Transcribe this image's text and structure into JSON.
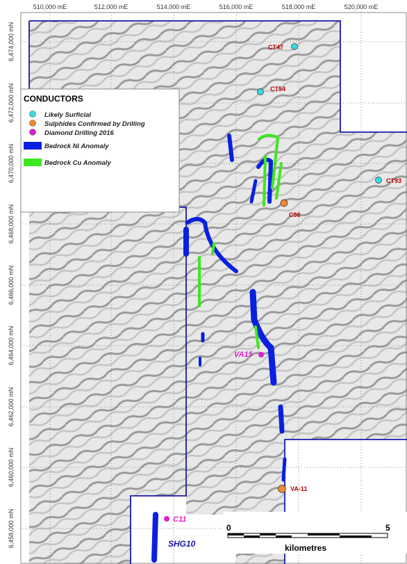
{
  "grid": {
    "eastings": [
      "510,000 mE",
      "512,000 mE",
      "514,000 mE",
      "516,000 mE",
      "518,000 mE",
      "520,000 mE"
    ],
    "northings": [
      "6,474,000 mN",
      "6,472,000 mN",
      "6,470,000 mN",
      "6,468,000 mN",
      "6,466,000 mN",
      "6,464,000 mN",
      "6,462,000 mN",
      "6,460,000 mN",
      "6,458,000 mN"
    ]
  },
  "legend": {
    "title": "CONDUCTORS",
    "items": [
      "Likely Surficial",
      "Sulphides Confirmed by Drilling",
      "Diamond Drilling 2016",
      "Bedrock Ni Anomaly",
      "Bedrock Cu Anomaly"
    ]
  },
  "points": [
    "CT47",
    "CT54",
    "CT93",
    "C56",
    "VA-11",
    "VA15",
    "C11"
  ],
  "zones": [
    "SHG10"
  ],
  "scale": {
    "start": "0",
    "end": "5",
    "unit": "kilometres"
  }
}
